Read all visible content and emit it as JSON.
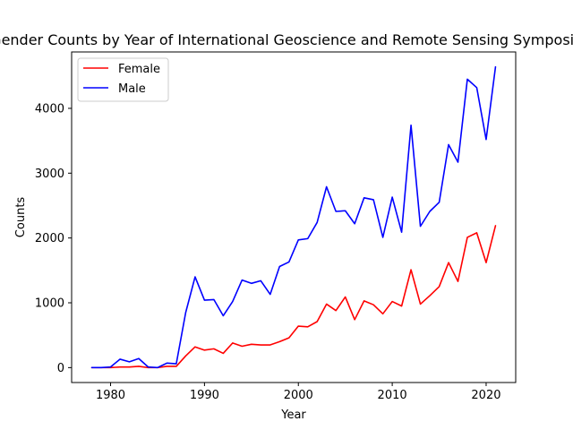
{
  "chart_data": {
    "type": "line",
    "title": "Gender Counts by Year of International Geoscience and Remote Sensing Symposium",
    "xlabel": "Year",
    "ylabel": "Counts",
    "xlim": [
      1975.85,
      2023.15
    ],
    "ylim": [
      -230,
      4870
    ],
    "xticks": [
      1980,
      1990,
      2000,
      2010,
      2020
    ],
    "yticks": [
      0,
      1000,
      2000,
      3000,
      4000
    ],
    "grid": false,
    "legend_position": "top-left",
    "x": [
      1978,
      1979,
      1980,
      1981,
      1982,
      1983,
      1984,
      1985,
      1986,
      1987,
      1988,
      1989,
      1990,
      1991,
      1992,
      1993,
      1994,
      1995,
      1996,
      1997,
      1998,
      1999,
      2000,
      2001,
      2002,
      2003,
      2004,
      2005,
      2006,
      2007,
      2008,
      2009,
      2010,
      2011,
      2012,
      2013,
      2014,
      2015,
      2016,
      2017,
      2018,
      2019,
      2020,
      2021
    ],
    "series": [
      {
        "name": "Female",
        "color": "#ff0000",
        "values": [
          0,
          0,
          0,
          10,
          10,
          20,
          0,
          0,
          20,
          20,
          180,
          320,
          270,
          290,
          220,
          380,
          330,
          360,
          350,
          350,
          400,
          460,
          640,
          630,
          710,
          980,
          880,
          1090,
          740,
          1030,
          970,
          830,
          1020,
          950,
          1510,
          980,
          1110,
          1250,
          1620,
          1330,
          2010,
          2080,
          1620,
          2190
        ]
      },
      {
        "name": "Male",
        "color": "#0000ff",
        "values": [
          0,
          0,
          10,
          130,
          90,
          140,
          10,
          0,
          70,
          60,
          850,
          1400,
          1040,
          1050,
          800,
          1020,
          1350,
          1300,
          1340,
          1130,
          1560,
          1630,
          1970,
          1990,
          2240,
          2790,
          2410,
          2420,
          2220,
          2620,
          2590,
          2010,
          2630,
          2090,
          3740,
          2180,
          2410,
          2550,
          3440,
          3170,
          4450,
          4320,
          3520,
          4640
        ]
      }
    ]
  }
}
